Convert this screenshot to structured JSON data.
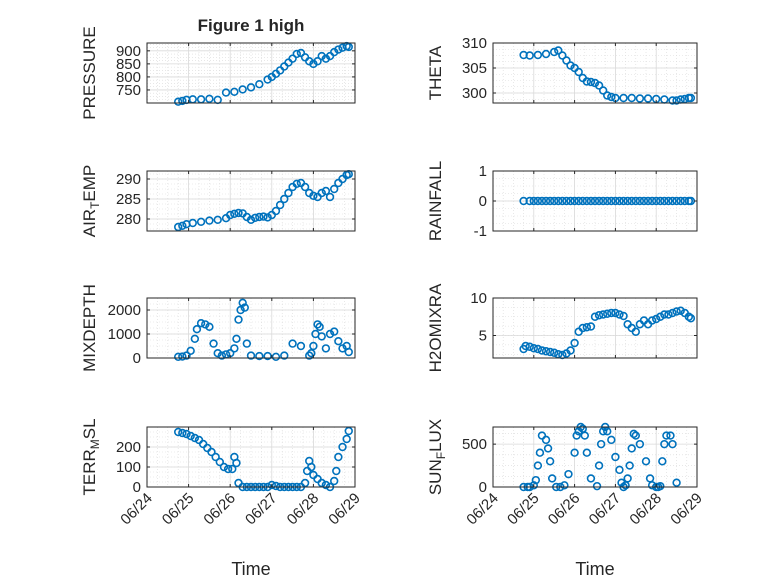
{
  "figure": {
    "title": "Figure 1 high",
    "colors": {
      "marker": "#0072BD",
      "axis": "#262626",
      "grid": "#d9d9d9"
    }
  },
  "chart_data": [
    {
      "type": "scatter",
      "title": "Figure 1 high",
      "ylabel": "PRESSURE",
      "xlabel": "",
      "xlim": [
        0,
        5
      ],
      "ylim": [
        700,
        930
      ],
      "yticks": [
        750,
        800,
        850,
        900
      ],
      "ytick_labels": [
        "750",
        "800",
        "850",
        "900"
      ],
      "x_dates": [
        "06/24",
        "06/25",
        "06/26",
        "06/27",
        "06/28",
        "06/29"
      ],
      "grid": true,
      "series": [
        {
          "x": [
            0.75,
            0.85,
            0.95,
            1.1,
            1.3,
            1.5,
            1.7,
            1.9,
            2.1,
            2.3,
            2.5,
            2.7,
            2.9,
            3.0,
            3.1,
            3.2,
            3.3,
            3.4,
            3.5,
            3.6,
            3.7,
            3.8,
            3.9,
            4.0,
            4.1,
            4.2,
            4.3,
            4.4,
            4.5,
            4.6,
            4.7,
            4.8,
            4.85
          ],
          "y": [
            705,
            708,
            712,
            714,
            714,
            716,
            712,
            740,
            743,
            752,
            760,
            772,
            790,
            800,
            812,
            825,
            840,
            855,
            870,
            888,
            892,
            875,
            860,
            850,
            860,
            880,
            870,
            880,
            895,
            905,
            912,
            918,
            915
          ]
        }
      ]
    },
    {
      "type": "scatter",
      "ylabel": "THETA",
      "xlabel": "",
      "xlim": [
        0,
        5
      ],
      "ylim": [
        298,
        310
      ],
      "yticks": [
        300,
        305,
        310
      ],
      "ytick_labels": [
        "300",
        "305",
        "310"
      ],
      "grid": true,
      "series": [
        {
          "x": [
            0.75,
            0.9,
            1.1,
            1.3,
            1.5,
            1.6,
            1.7,
            1.8,
            1.9,
            2.0,
            2.1,
            2.2,
            2.3,
            2.4,
            2.5,
            2.6,
            2.7,
            2.8,
            2.9,
            3.0,
            3.2,
            3.4,
            3.6,
            3.8,
            4.0,
            4.2,
            4.4,
            4.5,
            4.6,
            4.7,
            4.8,
            4.85
          ],
          "y": [
            307.6,
            307.5,
            307.6,
            307.8,
            308.2,
            308.5,
            307.5,
            306.5,
            305.5,
            305.0,
            304.2,
            303.0,
            302.3,
            302.2,
            302.0,
            301.5,
            300.5,
            299.5,
            299.2,
            299.0,
            299.0,
            299.0,
            298.9,
            298.9,
            298.8,
            298.7,
            298.5,
            298.5,
            298.7,
            298.8,
            299.0,
            299.0
          ]
        }
      ]
    },
    {
      "type": "scatter",
      "ylabel": "AIR_TEMP",
      "xlabel": "",
      "xlim": [
        0,
        5
      ],
      "ylim": [
        277,
        292
      ],
      "yticks": [
        280,
        285,
        290
      ],
      "ytick_labels": [
        "280",
        "285",
        "290"
      ],
      "grid": true,
      "series": [
        {
          "x": [
            0.75,
            0.85,
            0.95,
            1.1,
            1.3,
            1.5,
            1.7,
            1.9,
            2.0,
            2.1,
            2.2,
            2.3,
            2.4,
            2.5,
            2.6,
            2.7,
            2.8,
            2.9,
            3.0,
            3.1,
            3.2,
            3.3,
            3.4,
            3.5,
            3.6,
            3.7,
            3.8,
            3.9,
            4.0,
            4.1,
            4.2,
            4.3,
            4.4,
            4.5,
            4.6,
            4.7,
            4.8,
            4.85
          ],
          "y": [
            278.0,
            278.3,
            278.7,
            279.0,
            279.3,
            279.6,
            279.8,
            280.2,
            281.0,
            281.3,
            281.5,
            281.4,
            280.5,
            279.8,
            280.3,
            280.5,
            280.6,
            280.4,
            281.0,
            282.0,
            283.5,
            285.0,
            286.5,
            288.0,
            288.8,
            289.0,
            288.0,
            286.5,
            285.8,
            285.5,
            286.5,
            287.0,
            285.5,
            287.5,
            289.0,
            290.0,
            291.0,
            291.2
          ]
        }
      ]
    },
    {
      "type": "scatter",
      "ylabel": "RAINFALL",
      "xlabel": "",
      "xlim": [
        0,
        5
      ],
      "ylim": [
        -1,
        1
      ],
      "yticks": [
        -1,
        0,
        1
      ],
      "ytick_labels": [
        "-1",
        "0",
        "1"
      ],
      "grid": true,
      "series": [
        {
          "x": [
            0.75,
            0.9,
            1.0,
            1.1,
            1.2,
            1.3,
            1.4,
            1.5,
            1.6,
            1.7,
            1.8,
            1.9,
            2.0,
            2.1,
            2.2,
            2.3,
            2.4,
            2.5,
            2.6,
            2.7,
            2.8,
            2.9,
            3.0,
            3.1,
            3.2,
            3.3,
            3.4,
            3.5,
            3.6,
            3.7,
            3.8,
            3.9,
            4.0,
            4.1,
            4.2,
            4.3,
            4.4,
            4.5,
            4.6,
            4.7,
            4.8,
            4.85
          ],
          "y": [
            0,
            0,
            0,
            0,
            0,
            0,
            0,
            0,
            0,
            0,
            0,
            0,
            0,
            0,
            0,
            0,
            0,
            0,
            0,
            0,
            0,
            0,
            0,
            0,
            0,
            0,
            0,
            0,
            0,
            0,
            0,
            0,
            0,
            0,
            0,
            0,
            0,
            0,
            0,
            0,
            0,
            0
          ]
        }
      ]
    },
    {
      "type": "scatter",
      "ylabel": "MIXDEPTH",
      "xlabel": "",
      "xlim": [
        0,
        5
      ],
      "ylim": [
        0,
        2500
      ],
      "yticks": [
        0,
        1000,
        2000
      ],
      "ytick_labels": [
        "0",
        "1000",
        "2000"
      ],
      "grid": true,
      "series": [
        {
          "x": [
            0.75,
            0.85,
            0.95,
            1.05,
            1.15,
            1.2,
            1.3,
            1.4,
            1.5,
            1.6,
            1.7,
            1.8,
            1.9,
            2.0,
            2.1,
            2.15,
            2.2,
            2.25,
            2.3,
            2.35,
            2.4,
            2.5,
            2.7,
            2.9,
            3.1,
            3.3,
            3.5,
            3.7,
            3.9,
            3.95,
            4.0,
            4.05,
            4.1,
            4.15,
            4.2,
            4.3,
            4.4,
            4.5,
            4.6,
            4.7,
            4.8,
            4.85
          ],
          "y": [
            50,
            60,
            100,
            300,
            800,
            1200,
            1450,
            1400,
            1300,
            600,
            200,
            100,
            150,
            200,
            400,
            800,
            1600,
            2000,
            2300,
            2100,
            600,
            100,
            80,
            80,
            50,
            100,
            600,
            500,
            100,
            200,
            500,
            1000,
            1400,
            1300,
            900,
            400,
            1000,
            1100,
            700,
            400,
            500,
            250
          ]
        }
      ]
    },
    {
      "type": "scatter",
      "ylabel": "H2OMIXRA",
      "xlabel": "",
      "xlim": [
        0,
        5
      ],
      "ylim": [
        2,
        10
      ],
      "yticks": [
        5,
        10
      ],
      "ytick_labels": [
        "5",
        "10"
      ],
      "grid": true,
      "series": [
        {
          "x": [
            0.75,
            0.8,
            0.9,
            1.0,
            1.1,
            1.2,
            1.3,
            1.4,
            1.5,
            1.6,
            1.7,
            1.8,
            1.9,
            2.0,
            2.1,
            2.2,
            2.3,
            2.4,
            2.5,
            2.6,
            2.7,
            2.8,
            2.9,
            3.0,
            3.1,
            3.2,
            3.3,
            3.4,
            3.5,
            3.6,
            3.7,
            3.8,
            3.9,
            4.0,
            4.1,
            4.2,
            4.3,
            4.4,
            4.5,
            4.6,
            4.7,
            4.8,
            4.85
          ],
          "y": [
            3.2,
            3.6,
            3.5,
            3.3,
            3.2,
            3.0,
            2.9,
            2.8,
            2.7,
            2.5,
            2.4,
            2.6,
            3.0,
            4.0,
            5.5,
            6.0,
            6.1,
            6.2,
            7.5,
            7.7,
            7.8,
            7.9,
            8.0,
            8.0,
            7.8,
            7.6,
            6.5,
            6.0,
            5.5,
            6.5,
            7.0,
            6.5,
            7.0,
            7.2,
            7.5,
            7.8,
            7.8,
            8.0,
            8.2,
            8.3,
            8.0,
            7.5,
            7.3
          ]
        }
      ]
    },
    {
      "type": "scatter",
      "ylabel": "TERR_MSL",
      "xlabel": "Time",
      "xlim": [
        0,
        5
      ],
      "ylim": [
        0,
        300
      ],
      "yticks": [
        0,
        100,
        200
      ],
      "ytick_labels": [
        "0",
        "100",
        "200"
      ],
      "grid": true,
      "series": [
        {
          "x": [
            0.75,
            0.85,
            0.95,
            1.05,
            1.15,
            1.25,
            1.35,
            1.45,
            1.55,
            1.65,
            1.75,
            1.85,
            1.95,
            2.05,
            2.1,
            2.15,
            2.2,
            2.3,
            2.4,
            2.5,
            2.6,
            2.7,
            2.8,
            2.9,
            3.0,
            3.1,
            3.2,
            3.3,
            3.4,
            3.5,
            3.6,
            3.7,
            3.8,
            3.85,
            3.9,
            3.95,
            4.0,
            4.1,
            4.2,
            4.3,
            4.4,
            4.5,
            4.55,
            4.6,
            4.7,
            4.8,
            4.85
          ],
          "y": [
            275,
            270,
            265,
            255,
            245,
            235,
            215,
            195,
            175,
            150,
            125,
            100,
            90,
            90,
            150,
            120,
            20,
            0,
            0,
            0,
            0,
            0,
            0,
            0,
            10,
            5,
            0,
            0,
            0,
            0,
            0,
            0,
            20,
            80,
            130,
            100,
            60,
            40,
            20,
            10,
            0,
            30,
            80,
            150,
            200,
            240,
            280
          ]
        }
      ]
    },
    {
      "type": "scatter",
      "ylabel": "SUN_FLUX",
      "xlabel": "Time",
      "xlim": [
        0,
        5
      ],
      "ylim": [
        0,
        700
      ],
      "yticks": [
        0,
        500
      ],
      "ytick_labels": [
        "0",
        "500"
      ],
      "grid": true,
      "series": [
        {
          "x": [
            0.75,
            0.85,
            0.9,
            1.0,
            1.05,
            1.1,
            1.15,
            1.2,
            1.3,
            1.35,
            1.4,
            1.45,
            1.55,
            1.65,
            1.75,
            1.85,
            2.0,
            2.05,
            2.1,
            2.15,
            2.2,
            2.25,
            2.3,
            2.4,
            2.55,
            2.6,
            2.65,
            2.7,
            2.75,
            2.8,
            2.9,
            3.0,
            3.1,
            3.15,
            3.2,
            3.25,
            3.3,
            3.35,
            3.4,
            3.45,
            3.5,
            3.6,
            3.75,
            3.85,
            3.9,
            4.0,
            4.05,
            4.1,
            4.15,
            4.2,
            4.25,
            4.35,
            4.4,
            4.5
          ],
          "y": [
            0,
            0,
            0,
            20,
            80,
            250,
            400,
            600,
            550,
            450,
            300,
            100,
            0,
            0,
            20,
            150,
            400,
            600,
            650,
            700,
            680,
            600,
            400,
            100,
            10,
            250,
            500,
            650,
            700,
            650,
            550,
            350,
            200,
            50,
            0,
            20,
            100,
            250,
            450,
            620,
            600,
            500,
            300,
            100,
            20,
            0,
            0,
            10,
            300,
            500,
            600,
            600,
            500,
            50
          ]
        }
      ]
    }
  ]
}
